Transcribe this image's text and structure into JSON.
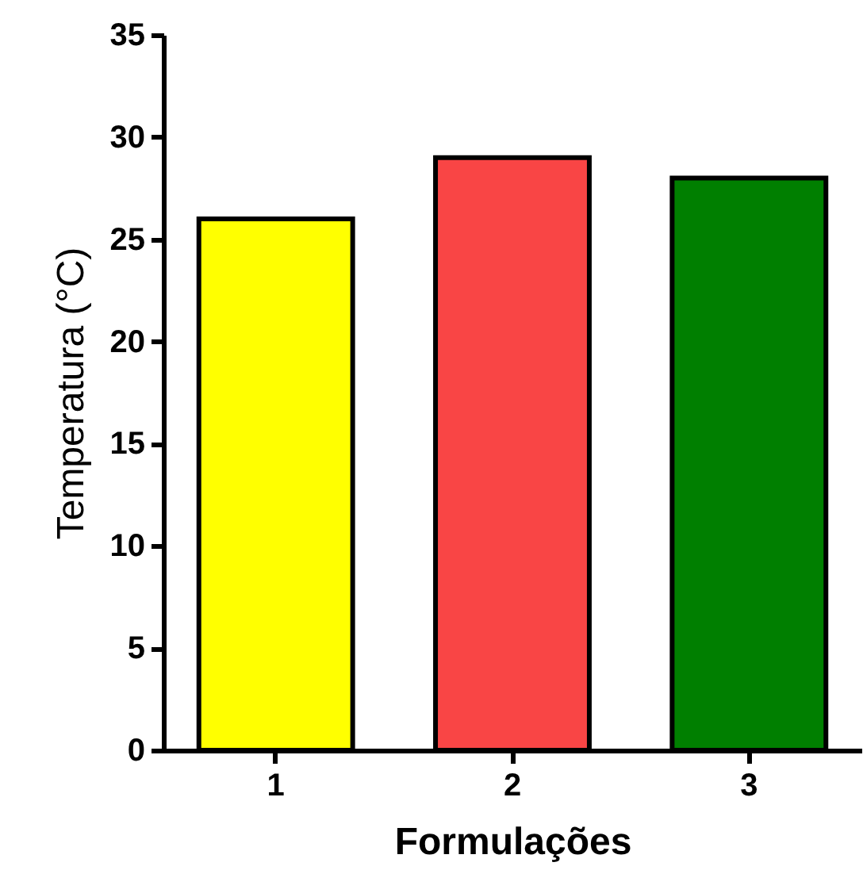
{
  "chart_data": {
    "type": "bar",
    "xlabel": "Formulações",
    "ylabel": "Temperatura (°C)",
    "categories": [
      "1",
      "2",
      "3"
    ],
    "values": [
      26,
      29,
      28
    ],
    "colors": [
      "#ffff00",
      "#f94545",
      "#007f00"
    ],
    "ylim": [
      0,
      35
    ],
    "yticks": [
      0,
      5,
      10,
      15,
      20,
      25,
      30,
      35
    ],
    "grid": false,
    "legend": false
  }
}
